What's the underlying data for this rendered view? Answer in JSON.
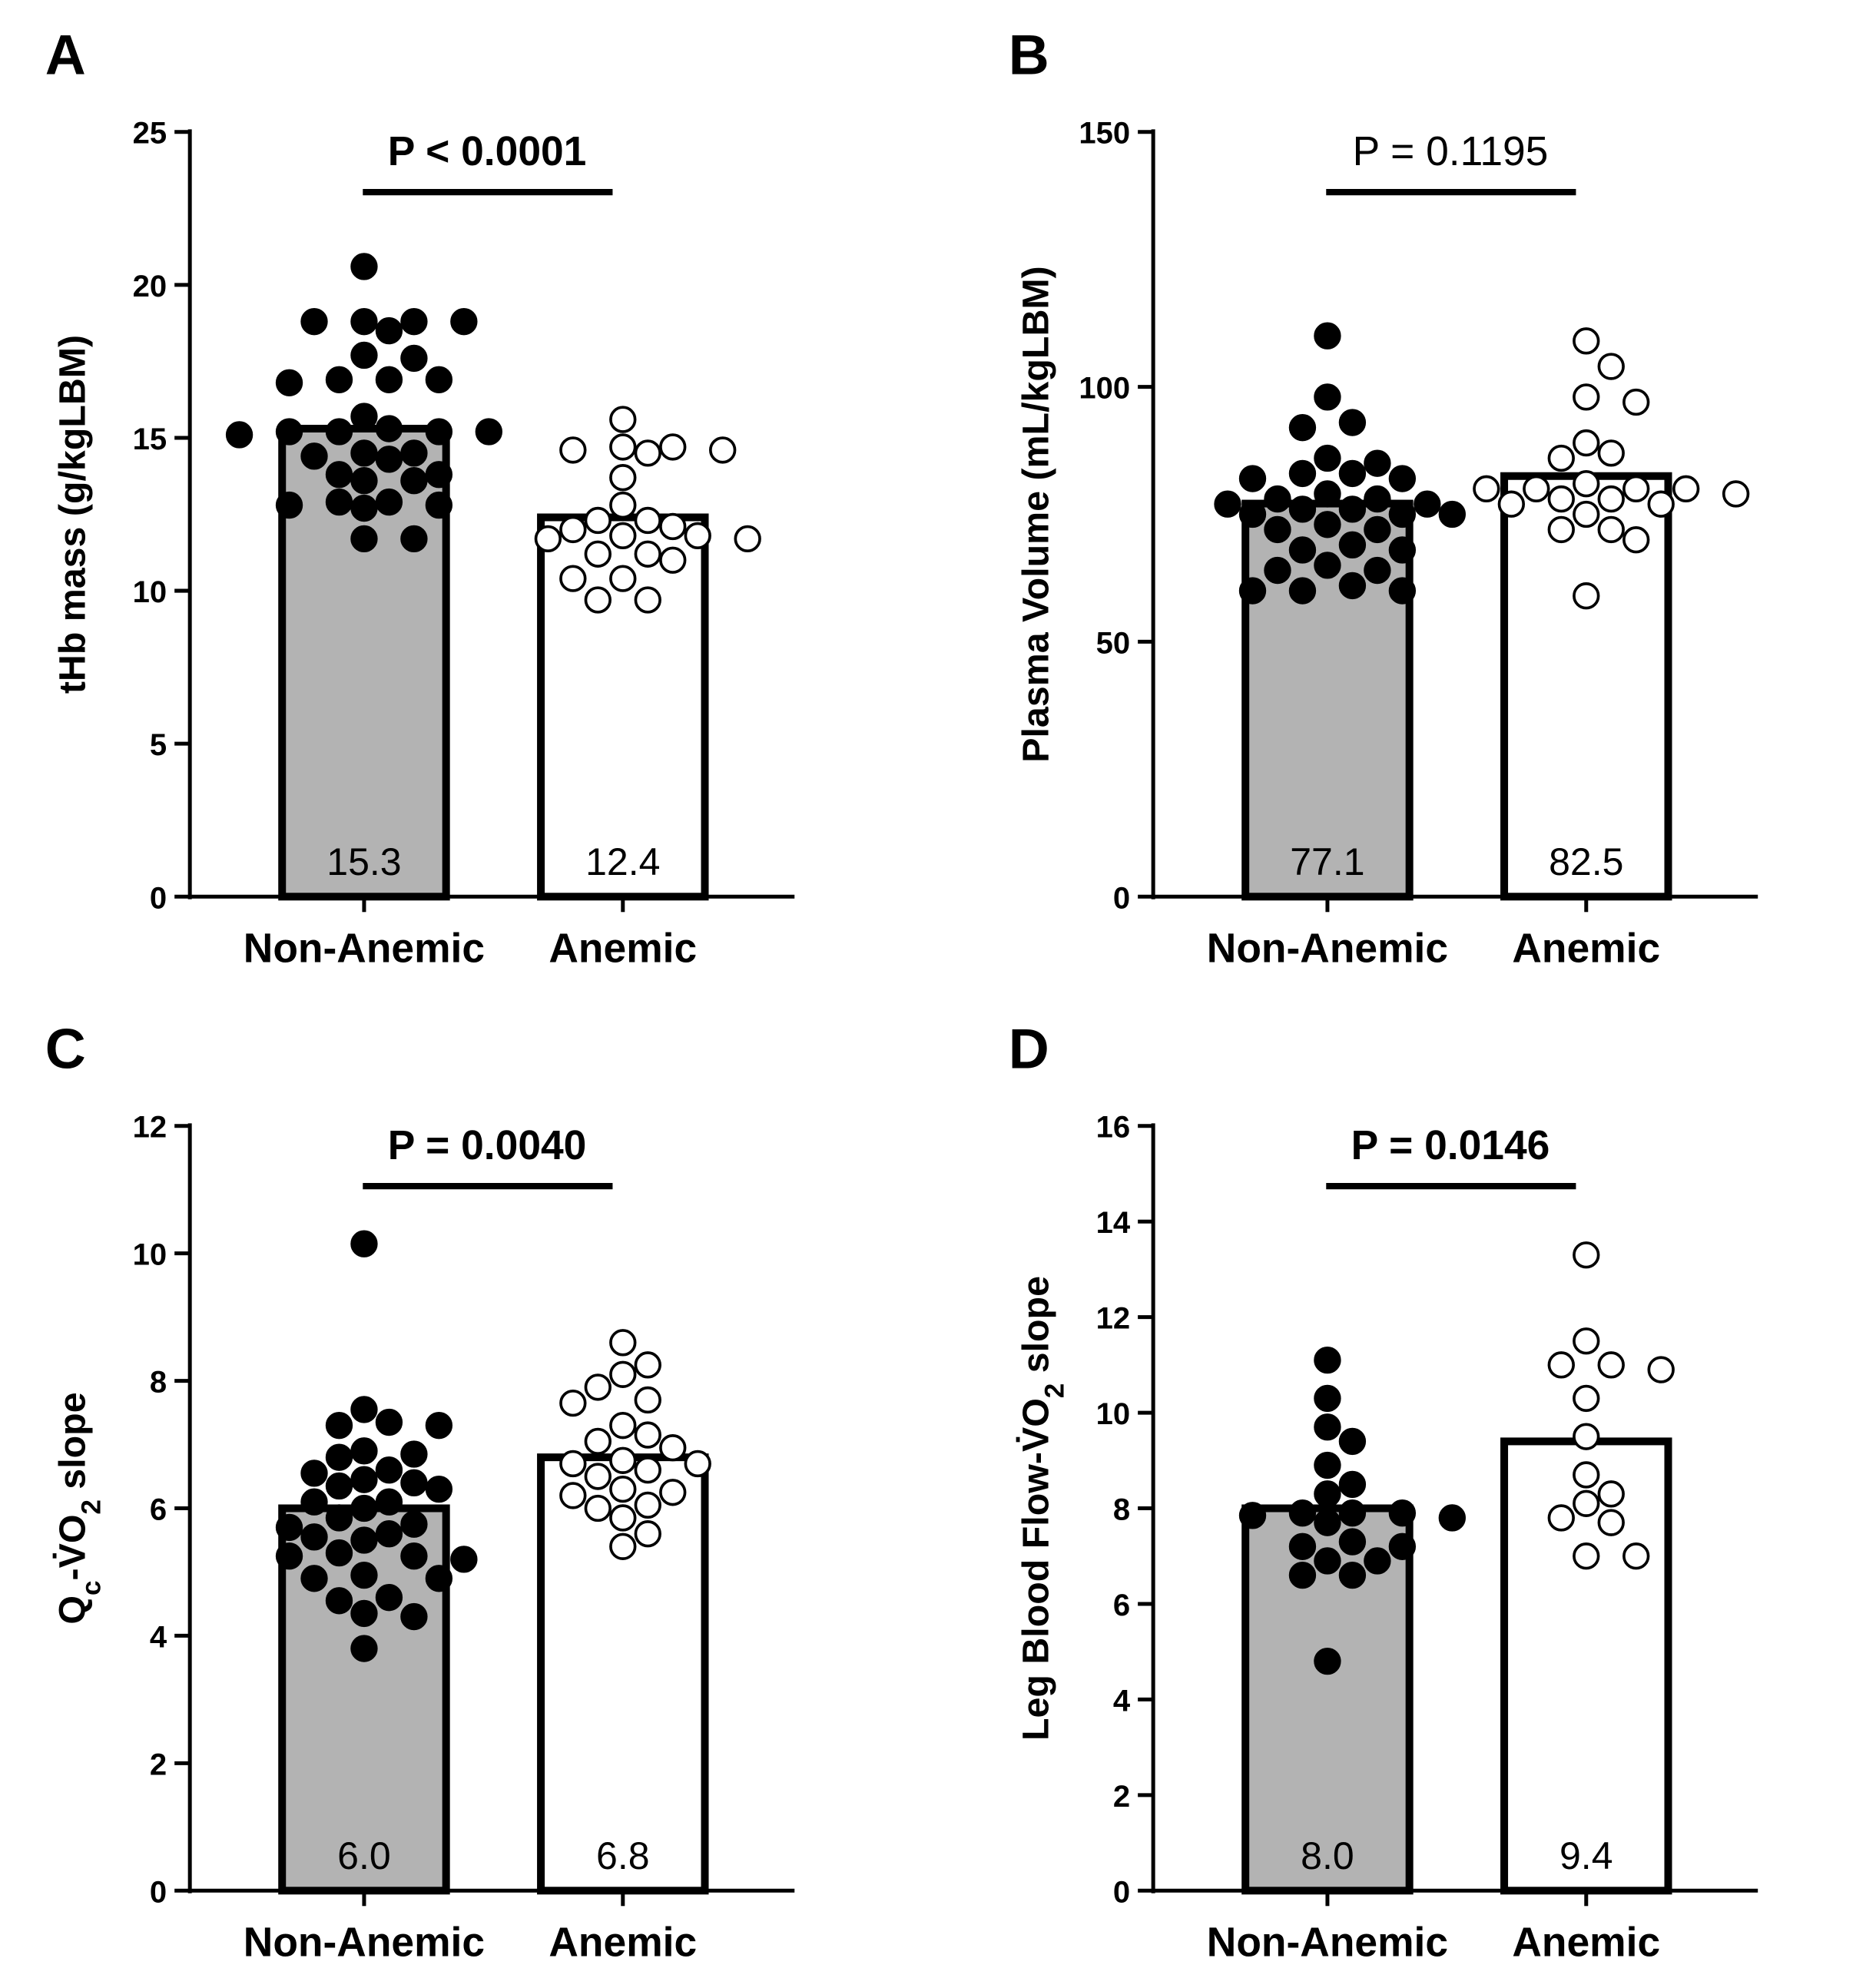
{
  "chart_data": [
    {
      "type": "bar",
      "panel": "A",
      "ylabel_parts": [
        {
          "text": "tHb mass (g/kgLBM)"
        }
      ],
      "yticks": [
        0,
        5,
        10,
        15,
        20,
        25
      ],
      "ylim": [
        0,
        25
      ],
      "categories": [
        "Non-Anemic",
        "Anemic"
      ],
      "means": [
        15.3,
        12.4
      ],
      "mean_labels": [
        "15.3",
        "12.4"
      ],
      "bar_colors": [
        "#b3b3b3",
        "#ffffff"
      ],
      "p_value": "P < 0.0001",
      "p_bold": true,
      "points": [
        [
          20.6,
          18.8,
          18.8,
          18.8,
          18.8,
          18.5,
          17.7,
          17.6,
          16.9,
          16.9,
          16.9,
          16.8,
          15.7,
          15.2,
          15.2,
          15.3,
          15.1,
          15.2,
          15.2,
          14.5,
          14.5,
          14.3,
          14.4,
          13.6,
          13.6,
          13.8,
          13.8,
          12.9,
          12.8,
          12.7,
          12.9,
          12.8,
          11.7,
          11.7
        ],
        [
          15.6,
          14.7,
          14.7,
          14.6,
          14.5,
          14.6,
          13.7,
          12.8,
          12.3,
          12.3,
          12.1,
          12.0,
          11.7,
          11.7,
          11.8,
          11.8,
          11.2,
          11.0,
          11.2,
          10.4,
          10.4,
          9.7,
          9.7
        ]
      ]
    },
    {
      "type": "bar",
      "panel": "B",
      "ylabel_parts": [
        {
          "text": "Plasma Volume (mL/kgLBM)"
        }
      ],
      "yticks": [
        0,
        50,
        100,
        150
      ],
      "ylim": [
        0,
        150
      ],
      "categories": [
        "Non-Anemic",
        "Anemic"
      ],
      "means": [
        77.1,
        82.5
      ],
      "mean_labels": [
        "77.1",
        "82.5"
      ],
      "bar_colors": [
        "#b3b3b3",
        "#ffffff"
      ],
      "p_value": "P = 0.1195",
      "p_bold": false,
      "points": [
        [
          110,
          98,
          93,
          92,
          86,
          85,
          83,
          83,
          82,
          82,
          79,
          78,
          78,
          77,
          77,
          76,
          76,
          75,
          75,
          75,
          73,
          72,
          72,
          69,
          68,
          68,
          65,
          64,
          64,
          61,
          60,
          60,
          60
        ],
        [
          109,
          104,
          98,
          97,
          89,
          87,
          86,
          81,
          80,
          80,
          80,
          80,
          79,
          78,
          78,
          77,
          77,
          75,
          72,
          72,
          70,
          59
        ]
      ]
    },
    {
      "type": "bar",
      "panel": "C",
      "ylabel_parts": [
        {
          "text": "Q"
        },
        {
          "text": "c",
          "sub": true
        },
        {
          "text": "-V̇O"
        },
        {
          "text": "2",
          "sub": true
        },
        {
          "text": " slope"
        }
      ],
      "yticks": [
        0,
        2,
        4,
        6,
        8,
        10,
        12
      ],
      "ylim": [
        0,
        12
      ],
      "categories": [
        "Non-Anemic",
        "Anemic"
      ],
      "means": [
        6.0,
        6.8
      ],
      "mean_labels": [
        "6.0",
        "6.8"
      ],
      "bar_colors": [
        "#b3b3b3",
        "#ffffff"
      ],
      "p_value": "P = 0.0040",
      "p_bold": true,
      "points": [
        [
          10.15,
          7.55,
          7.3,
          7.3,
          7.35,
          6.9,
          6.8,
          6.85,
          6.55,
          6.6,
          6.45,
          6.4,
          6.35,
          6.3,
          6.1,
          6.1,
          6.0,
          5.85,
          5.75,
          5.7,
          5.6,
          5.55,
          5.5,
          5.3,
          5.25,
          5.2,
          5.25,
          4.9,
          4.95,
          4.9,
          4.6,
          4.55,
          4.35,
          4.3,
          3.8
        ],
        [
          8.6,
          8.25,
          8.1,
          7.9,
          7.65,
          7.7,
          7.3,
          7.15,
          7.05,
          6.95,
          6.75,
          6.7,
          6.7,
          6.6,
          6.5,
          6.3,
          6.25,
          6.2,
          6.0,
          6.05,
          5.85,
          5.6,
          5.4
        ]
      ]
    },
    {
      "type": "bar",
      "panel": "D",
      "ylabel_parts": [
        {
          "text": "Leg Blood Flow-V̇O"
        },
        {
          "text": "2",
          "sub": true
        },
        {
          "text": " slope"
        }
      ],
      "yticks": [
        0,
        2,
        4,
        6,
        8,
        10,
        12,
        14,
        16
      ],
      "ylim": [
        0,
        16
      ],
      "categories": [
        "Non-Anemic",
        "Anemic"
      ],
      "means": [
        8.0,
        9.4
      ],
      "mean_labels": [
        "8.0",
        "9.4"
      ],
      "bar_colors": [
        "#b3b3b3",
        "#ffffff"
      ],
      "p_value": "P = 0.0146",
      "p_bold": true,
      "points": [
        [
          11.1,
          10.3,
          9.7,
          9.4,
          8.9,
          8.5,
          8.3,
          7.9,
          7.9,
          7.9,
          7.85,
          7.8,
          7.7,
          7.3,
          7.2,
          7.2,
          6.9,
          6.9,
          6.6,
          6.6,
          4.8
        ],
        [
          13.3,
          11.5,
          11.0,
          11.0,
          10.9,
          10.3,
          9.5,
          8.7,
          8.3,
          8.1,
          7.8,
          7.7,
          7.0,
          7.0
        ]
      ]
    }
  ]
}
